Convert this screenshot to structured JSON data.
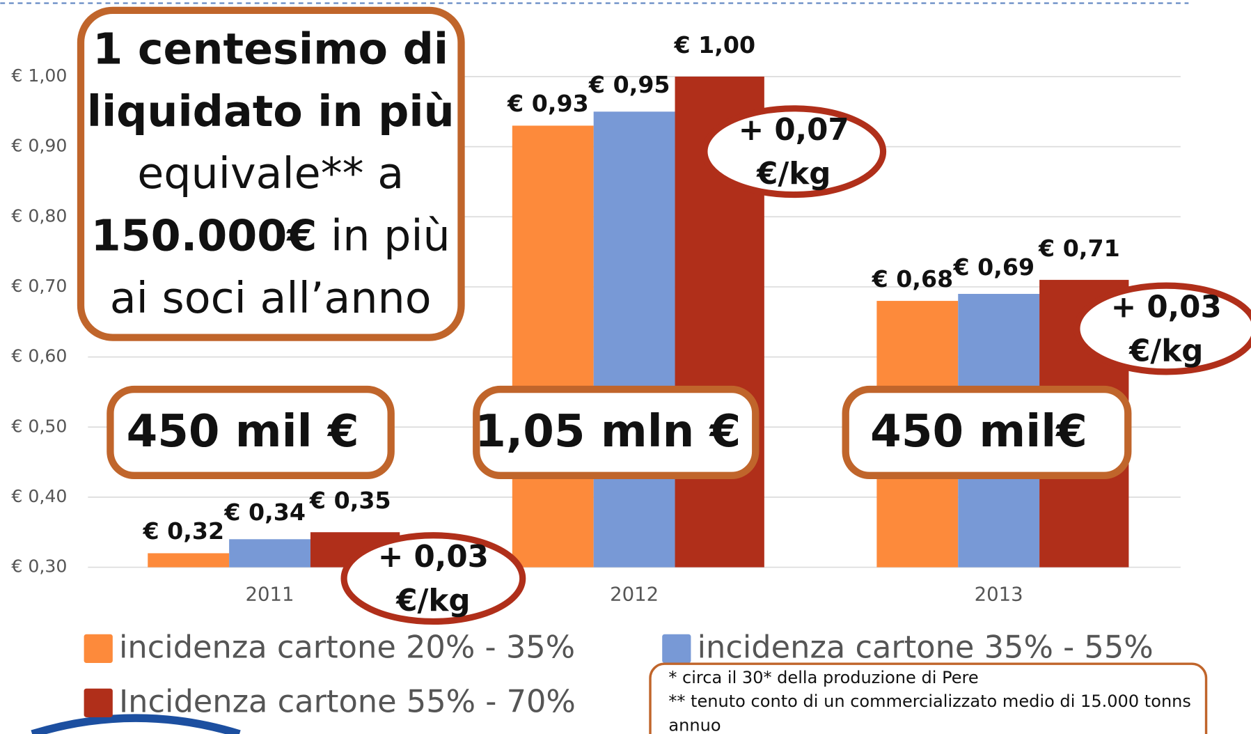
{
  "chart_data": {
    "type": "bar",
    "categories": [
      "2011",
      "2012",
      "2013"
    ],
    "series": [
      {
        "name": "incidenza cartone 20% - 35%",
        "color": "#fd8a3b",
        "values": [
          0.32,
          0.93,
          0.68
        ],
        "value_labels": [
          "€ 0,32",
          "€ 0,93",
          "€ 0,68"
        ]
      },
      {
        "name": "incidenza cartone 35% - 55%",
        "color": "#7899d6",
        "values": [
          0.34,
          0.95,
          0.69
        ],
        "value_labels": [
          "€ 0,34",
          "€ 0,95",
          "€ 0,69"
        ]
      },
      {
        "name": "Incidenza cartone 55% - 70%",
        "color": "#b02f1a",
        "values": [
          0.35,
          1.0,
          0.71
        ],
        "value_labels": [
          "€ 0,35",
          "€ 1,00",
          "€ 0,71"
        ]
      }
    ],
    "ylim": [
      0.3,
      1.0
    ],
    "yticks": [
      {
        "value": 0.3,
        "label": "€ 0,30"
      },
      {
        "value": 0.4,
        "label": "€ 0,40"
      },
      {
        "value": 0.5,
        "label": "€ 0,50"
      },
      {
        "value": 0.6,
        "label": "€ 0,60"
      },
      {
        "value": 0.7,
        "label": "€ 0,70"
      },
      {
        "value": 0.8,
        "label": "€ 0,80"
      },
      {
        "value": 0.9,
        "label": "€ 0,90"
      },
      {
        "value": 1.0,
        "label": "€ 1,00"
      }
    ],
    "grid": true,
    "callout_lines": [
      [
        {
          "text": "1 centesimo di",
          "bold": true
        }
      ],
      [
        {
          "text": "liquidato in più",
          "bold": true
        }
      ],
      [
        {
          "text": "equivale** a",
          "bold": false
        }
      ],
      [
        {
          "text": "150.000€",
          "bold": true
        },
        {
          "text": " in più",
          "bold": false
        }
      ],
      [
        {
          "text": "ai soci all’anno",
          "bold": false
        }
      ]
    ],
    "totals": [
      "450 mil €",
      "1,05 mln €",
      "450 mil€"
    ],
    "increments": [
      [
        "+ 0,03",
        "€/kg"
      ],
      [
        "+ 0,07",
        "€/kg"
      ],
      [
        "+ 0,03",
        "€/kg"
      ]
    ],
    "footnotes": [
      "*   circa il 30* della produzione di Pere",
      "** tenuto conto di un commercializzato medio di 15.000 tonns",
      "annuo"
    ]
  }
}
